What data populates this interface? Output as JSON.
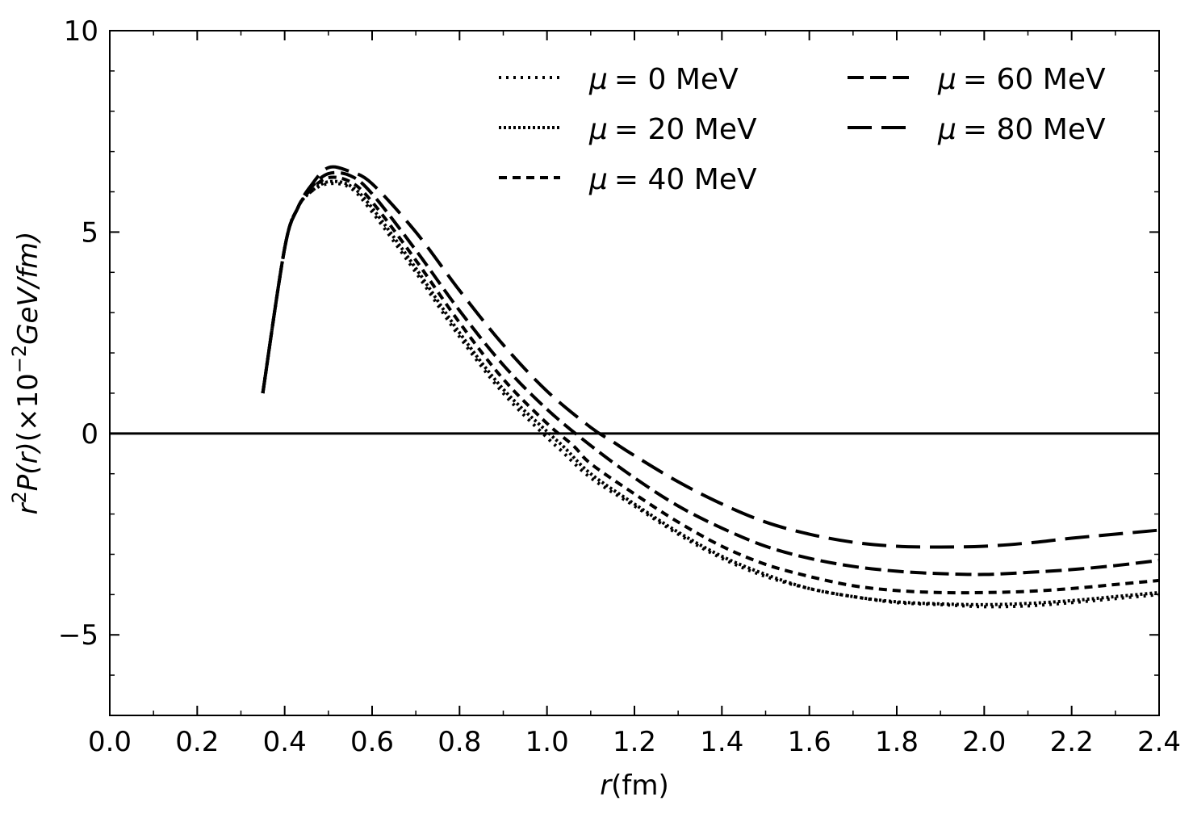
{
  "chart_data": {
    "type": "line",
    "xlabel_var": "r",
    "xlabel_unit": "(fm)",
    "ylabel_parts": [
      "r",
      "2",
      "P(r)",
      "(×10",
      "−2",
      "GeV/fm)"
    ],
    "xlim": [
      0.0,
      2.4
    ],
    "ylim": [
      -7,
      10
    ],
    "xticks": [
      0.0,
      0.2,
      0.4,
      0.6,
      0.8,
      1.0,
      1.2,
      1.4,
      1.6,
      1.8,
      2.0,
      2.2,
      2.4
    ],
    "xtick_labels": [
      "0.0",
      "0.2",
      "0.4",
      "0.6",
      "0.8",
      "1.0",
      "1.2",
      "1.4",
      "1.6",
      "1.8",
      "2.0",
      "2.2",
      "2.4"
    ],
    "yticks": [
      -5,
      0,
      5,
      10
    ],
    "ytick_labels": [
      "−5",
      "0",
      "5",
      "10"
    ],
    "hline": 0,
    "legend_position": "top-right",
    "legend_columns": 2,
    "grid": false,
    "line_color": "#000000",
    "series": [
      {
        "name": "μ = 0 MeV",
        "legend_symbol": "μ",
        "legend_text": "= 0 MeV",
        "dash": "dotted-sparse",
        "x": [
          0.35,
          0.4,
          0.43,
          0.46,
          0.5,
          0.55,
          0.6,
          0.7,
          0.8,
          0.9,
          1.0,
          1.03,
          1.1,
          1.2,
          1.3,
          1.4,
          1.5,
          1.6,
          1.7,
          1.8,
          1.9,
          2.0,
          2.1,
          2.2,
          2.3,
          2.4
        ],
        "y": [
          1.0,
          4.6,
          5.6,
          6.0,
          6.2,
          6.1,
          5.5,
          4.0,
          2.4,
          1.0,
          -0.1,
          -0.4,
          -1.1,
          -1.8,
          -2.5,
          -3.1,
          -3.55,
          -3.85,
          -4.05,
          -4.2,
          -4.25,
          -4.3,
          -4.28,
          -4.2,
          -4.1,
          -4.0
        ]
      },
      {
        "name": "μ = 20 MeV",
        "legend_symbol": "μ",
        "legend_text": "= 20 MeV",
        "dash": "dotted-dense",
        "x": [
          0.35,
          0.4,
          0.43,
          0.46,
          0.5,
          0.55,
          0.6,
          0.7,
          0.8,
          0.9,
          1.0,
          1.04,
          1.1,
          1.2,
          1.3,
          1.4,
          1.5,
          1.6,
          1.7,
          1.8,
          1.9,
          2.0,
          2.1,
          2.2,
          2.3,
          2.4
        ],
        "y": [
          1.0,
          4.6,
          5.6,
          6.0,
          6.25,
          6.15,
          5.6,
          4.1,
          2.5,
          1.1,
          0.05,
          -0.35,
          -1.0,
          -1.75,
          -2.45,
          -3.05,
          -3.5,
          -3.85,
          -4.05,
          -4.18,
          -4.23,
          -4.25,
          -4.22,
          -4.15,
          -4.05,
          -3.95
        ]
      },
      {
        "name": "μ = 40 MeV",
        "legend_symbol": "μ",
        "legend_text": "= 40 MeV",
        "dash": "short-dash",
        "x": [
          0.35,
          0.4,
          0.43,
          0.46,
          0.5,
          0.55,
          0.6,
          0.7,
          0.8,
          0.9,
          1.0,
          1.06,
          1.1,
          1.2,
          1.3,
          1.4,
          1.5,
          1.6,
          1.7,
          1.8,
          1.9,
          2.0,
          2.1,
          2.2,
          2.3,
          2.4
        ],
        "y": [
          1.0,
          4.6,
          5.6,
          6.05,
          6.35,
          6.25,
          5.75,
          4.3,
          2.75,
          1.35,
          0.25,
          -0.3,
          -0.75,
          -1.5,
          -2.2,
          -2.8,
          -3.25,
          -3.55,
          -3.78,
          -3.9,
          -3.95,
          -3.95,
          -3.92,
          -3.85,
          -3.75,
          -3.65
        ]
      },
      {
        "name": "μ = 60 MeV",
        "legend_symbol": "μ",
        "legend_text": "= 60 MeV",
        "dash": "medium-dash",
        "x": [
          0.35,
          0.4,
          0.43,
          0.46,
          0.5,
          0.55,
          0.6,
          0.7,
          0.8,
          0.9,
          1.0,
          1.1,
          1.2,
          1.3,
          1.4,
          1.5,
          1.6,
          1.7,
          1.8,
          1.9,
          2.0,
          2.1,
          2.2,
          2.3,
          2.4
        ],
        "y": [
          1.0,
          4.6,
          5.6,
          6.1,
          6.45,
          6.4,
          5.95,
          4.55,
          3.05,
          1.7,
          0.6,
          -0.3,
          -1.1,
          -1.8,
          -2.35,
          -2.8,
          -3.1,
          -3.3,
          -3.42,
          -3.48,
          -3.5,
          -3.45,
          -3.38,
          -3.28,
          -3.15
        ]
      },
      {
        "name": "μ = 80 MeV",
        "legend_symbol": "μ",
        "legend_text": "= 80 MeV",
        "dash": "long-dash",
        "x": [
          0.35,
          0.4,
          0.43,
          0.46,
          0.5,
          0.55,
          0.6,
          0.7,
          0.8,
          0.9,
          1.0,
          1.1,
          1.15,
          1.2,
          1.3,
          1.4,
          1.5,
          1.6,
          1.7,
          1.8,
          1.9,
          2.0,
          2.1,
          2.2,
          2.3,
          2.4
        ],
        "y": [
          1.0,
          4.6,
          5.6,
          6.15,
          6.6,
          6.5,
          6.2,
          5.0,
          3.55,
          2.2,
          1.05,
          0.15,
          -0.2,
          -0.55,
          -1.2,
          -1.75,
          -2.2,
          -2.5,
          -2.7,
          -2.8,
          -2.82,
          -2.8,
          -2.72,
          -2.6,
          -2.5,
          -2.4
        ]
      }
    ]
  }
}
